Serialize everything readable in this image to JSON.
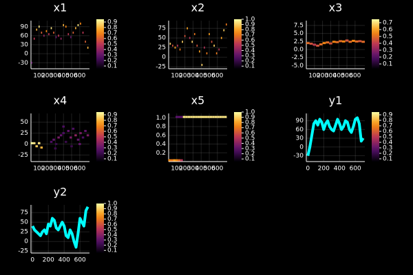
{
  "chart_data": [
    {
      "type": "heatmap",
      "title": "x1",
      "xlim": [
        0,
        720
      ],
      "xticks": [
        100,
        200,
        300,
        400,
        500,
        600
      ],
      "ylim": [
        -50,
        110
      ],
      "yticks": [
        -30,
        0,
        30,
        60,
        90
      ],
      "grid": true,
      "xbin": 14,
      "colormap": "inferno",
      "clim": [
        0.05,
        0.95
      ],
      "cticks": [
        0.1,
        0.2,
        0.3,
        0.4,
        0.5,
        0.6,
        0.7,
        0.8,
        0.9
      ],
      "x": [
        10,
        40,
        70,
        100,
        130,
        160,
        190,
        220,
        250,
        280,
        310,
        340,
        370,
        400,
        430,
        460,
        490,
        520,
        550,
        580,
        610,
        640,
        670,
        700
      ],
      "y": [
        -30,
        50,
        80,
        90,
        70,
        60,
        75,
        65,
        85,
        70,
        55,
        60,
        50,
        95,
        90,
        65,
        55,
        70,
        85,
        95,
        100,
        70,
        40,
        20
      ],
      "values": [
        0.3,
        0.5,
        0.8,
        0.9,
        0.6,
        0.4,
        0.7,
        0.5,
        0.9,
        0.6,
        0.3,
        0.5,
        0.4,
        0.8,
        0.7,
        0.5,
        0.3,
        0.6,
        0.8,
        0.9,
        0.7,
        0.5,
        0.6,
        0.8
      ]
    },
    {
      "type": "heatmap",
      "title": "x2",
      "xlim": [
        0,
        720
      ],
      "xticks": [
        100,
        200,
        300,
        400,
        500,
        600
      ],
      "ylim": [
        -30,
        95
      ],
      "yticks": [
        -25,
        0,
        25,
        50,
        75
      ],
      "grid": true,
      "xbin": 14,
      "colormap": "inferno",
      "clim": [
        0.05,
        1.0
      ],
      "cticks": [
        0.1,
        0.2,
        0.3,
        0.4,
        0.5,
        0.6,
        0.7,
        0.8,
        0.9,
        {
          "value": 1.0,
          "label": "1.0"
        }
      ],
      "x": [
        20,
        50,
        80,
        110,
        140,
        170,
        200,
        230,
        260,
        290,
        320,
        350,
        380,
        410,
        440,
        470,
        500,
        530,
        560,
        590,
        620,
        650,
        680,
        710
      ],
      "y": [
        35,
        30,
        25,
        30,
        20,
        40,
        55,
        75,
        50,
        40,
        60,
        30,
        15,
        -20,
        25,
        10,
        60,
        40,
        30,
        10,
        20,
        50,
        70,
        85
      ],
      "values": [
        0.9,
        0.6,
        0.8,
        0.5,
        0.7,
        0.9,
        0.6,
        0.8,
        0.5,
        0.9,
        0.7,
        0.6,
        0.8,
        0.9,
        0.5,
        0.7,
        0.8,
        0.6,
        0.9,
        0.7,
        0.5,
        0.8,
        0.9,
        0.7
      ]
    },
    {
      "type": "heatmap",
      "title": "x3",
      "xlim": [
        0,
        720
      ],
      "xticks": [
        100,
        200,
        300,
        400,
        500,
        600
      ],
      "ylim": [
        -6,
        9
      ],
      "yticks": [
        {
          "value": -5,
          "label": "-5.0"
        },
        -2.5,
        {
          "value": 0,
          "label": "0.0"
        },
        2.5,
        {
          "value": 5,
          "label": "5.0"
        },
        7.5
      ],
      "grid": true,
      "xbin": 40,
      "colormap": "inferno",
      "clim": [
        0.03,
        0.75
      ],
      "cticks": [
        0.1,
        0.2,
        0.3,
        0.4,
        0.5,
        0.6,
        0.7
      ],
      "x": [
        20,
        60,
        100,
        140,
        180,
        220,
        260,
        300,
        340,
        380,
        420,
        460,
        500,
        540,
        580,
        620,
        660,
        700
      ],
      "y": [
        2,
        1.8,
        1.5,
        1.2,
        1.6,
        2,
        2.2,
        1.9,
        2.4,
        2.3,
        2.6,
        2.5,
        2.8,
        2.4,
        2.7,
        2.5,
        2.6,
        2.4
      ],
      "values": [
        0.5,
        0.45,
        0.4,
        0.45,
        0.5,
        0.55,
        0.5,
        0.45,
        0.55,
        0.5,
        0.5,
        0.55,
        0.45,
        0.5,
        0.55,
        0.5,
        0.45,
        0.5
      ]
    },
    {
      "type": "heatmap",
      "title": "x4",
      "xlim": [
        0,
        720
      ],
      "xticks": [
        100,
        200,
        300,
        400,
        500,
        600
      ],
      "ylim": [
        -40,
        70
      ],
      "yticks": [
        -25,
        0,
        25,
        50
      ],
      "grid": true,
      "xbin": 30,
      "colormap": "inferno",
      "clim": [
        0.05,
        0.95
      ],
      "cticks": [
        0.1,
        0.2,
        0.3,
        0.4,
        0.5,
        0.6,
        0.7,
        0.8,
        0.9
      ],
      "x": [
        10,
        40,
        70,
        100,
        130,
        250,
        280,
        310,
        340,
        370,
        400,
        430,
        460,
        490,
        520,
        550,
        580,
        610,
        640,
        670,
        700,
        300,
        400,
        500,
        600
      ],
      "y": [
        2,
        2,
        -5,
        2,
        -8,
        5,
        10,
        0,
        15,
        20,
        25,
        5,
        30,
        15,
        35,
        20,
        10,
        25,
        15,
        30,
        20,
        -10,
        40,
        -5,
        0
      ],
      "values": [
        0.95,
        0.9,
        0.85,
        0.9,
        0.8,
        0.25,
        0.3,
        0.2,
        0.35,
        0.3,
        0.25,
        0.2,
        0.3,
        0.35,
        0.25,
        0.4,
        0.3,
        0.35,
        0.25,
        0.3,
        0.35,
        0.2,
        0.25,
        0.2,
        0.3
      ]
    },
    {
      "type": "heatmap",
      "title": "x5",
      "xlim": [
        0,
        720
      ],
      "xticks": [
        100,
        200,
        300,
        400,
        500,
        600
      ],
      "ylim": [
        0,
        1.1
      ],
      "yticks": [
        0.2,
        0.4,
        0.6,
        0.8,
        {
          "value": 1.0,
          "label": "1.0"
        }
      ],
      "grid": true,
      "xbin": 30,
      "colormap": "inferno",
      "clim": [
        0.05,
        1.0
      ],
      "cticks": [
        0.1,
        0.2,
        0.3,
        0.4,
        0.5,
        0.6,
        0.7,
        0.8,
        0.9,
        {
          "value": 1.0,
          "label": "1.0"
        }
      ],
      "x": [
        10,
        40,
        70,
        100,
        130,
        160,
        100,
        130,
        160,
        190,
        220,
        250,
        280,
        310,
        340,
        370,
        400,
        430,
        460,
        490,
        520,
        550,
        580,
        610,
        640,
        670,
        700
      ],
      "y": [
        0.03,
        0.03,
        0.03,
        0.03,
        0.03,
        0.03,
        1.02,
        1.02,
        1.02,
        1.02,
        1.02,
        1.02,
        1.02,
        1.02,
        1.02,
        1.02,
        1.02,
        1.02,
        1.02,
        1.02,
        1.02,
        1.02,
        1.02,
        1.02,
        1.02,
        1.02,
        1.02
      ],
      "values": [
        0.75,
        0.7,
        0.8,
        0.75,
        0.65,
        0.5,
        0.3,
        0.3,
        0.3,
        0.95,
        0.95,
        0.95,
        0.95,
        0.95,
        0.95,
        0.95,
        0.95,
        0.95,
        0.95,
        0.95,
        0.95,
        0.95,
        0.95,
        0.95,
        0.95,
        0.95,
        0.95
      ]
    },
    {
      "type": "line",
      "title": "y1",
      "color": "#00ffff",
      "xlim": [
        -20,
        720
      ],
      "xticks": [
        0,
        200,
        400,
        600
      ],
      "ylim": [
        -50,
        115
      ],
      "yticks": [
        -30,
        0,
        30,
        60,
        90
      ],
      "grid": true,
      "colormap": "inferno",
      "clim": [
        0.05,
        0.95
      ],
      "cticks": [
        0.1,
        0.2,
        0.3,
        0.4,
        0.5,
        0.6,
        0.7,
        0.8,
        0.9
      ],
      "x": [
        0,
        25,
        50,
        75,
        100,
        125,
        150,
        175,
        200,
        225,
        250,
        275,
        300,
        325,
        350,
        375,
        400,
        425,
        450,
        475,
        500,
        525,
        550,
        575,
        600,
        625,
        650,
        675,
        700
      ],
      "values": [
        -30,
        0,
        40,
        80,
        90,
        75,
        95,
        85,
        60,
        80,
        90,
        70,
        60,
        55,
        75,
        95,
        80,
        60,
        70,
        90,
        85,
        60,
        50,
        70,
        95,
        100,
        80,
        20,
        30
      ]
    },
    {
      "type": "line",
      "title": "y2",
      "color": "#00ffff",
      "xlim": [
        -20,
        720
      ],
      "xticks": [
        0,
        200,
        400,
        600
      ],
      "ylim": [
        -30,
        95
      ],
      "yticks": [
        -25,
        0,
        25,
        50,
        75
      ],
      "grid": true,
      "colormap": "inferno",
      "clim": [
        0.05,
        1.0
      ],
      "cticks": [
        0.1,
        0.2,
        0.3,
        0.4,
        0.5,
        0.6,
        0.7,
        0.8,
        0.9,
        {
          "value": 1.0,
          "label": "1.0"
        }
      ],
      "x": [
        0,
        25,
        50,
        75,
        100,
        125,
        150,
        175,
        200,
        225,
        250,
        275,
        300,
        325,
        350,
        375,
        400,
        425,
        450,
        475,
        500,
        525,
        550,
        575,
        600,
        625,
        650,
        675,
        700
      ],
      "values": [
        40,
        30,
        25,
        20,
        15,
        25,
        30,
        20,
        45,
        40,
        60,
        55,
        35,
        30,
        40,
        50,
        40,
        15,
        10,
        30,
        20,
        0,
        -15,
        20,
        60,
        50,
        40,
        80,
        90
      ]
    }
  ]
}
